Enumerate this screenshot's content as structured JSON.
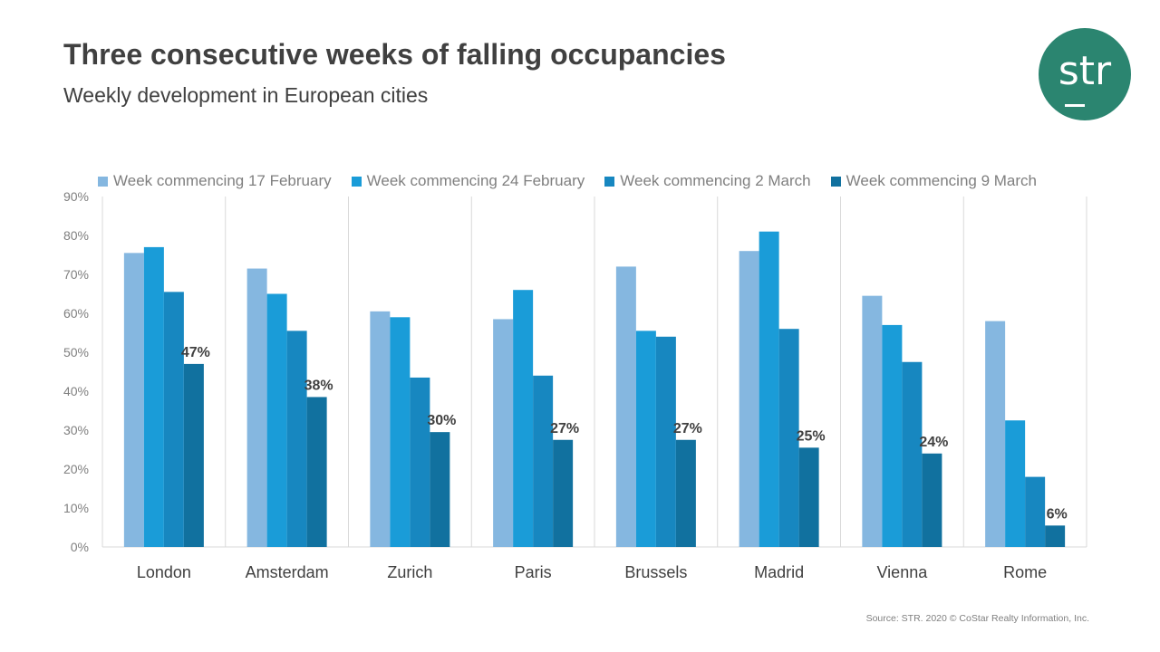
{
  "title": "Three consecutive weeks of falling occupancies",
  "subtitle": "Weekly development in European cities",
  "logo_text": "str",
  "source": "Source: STR. 2020 © CoStar Realty Information, Inc.",
  "chart_data": {
    "type": "bar",
    "categories": [
      "London",
      "Amsterdam",
      "Zurich",
      "Paris",
      "Brussels",
      "Madrid",
      "Vienna",
      "Rome"
    ],
    "ylim": [
      0,
      90
    ],
    "yticks": [
      "0%",
      "10%",
      "20%",
      "30%",
      "40%",
      "50%",
      "60%",
      "70%",
      "80%",
      "90%"
    ],
    "legend_position": "top",
    "grid": "vertical category separators",
    "series": [
      {
        "name": "Week commencing 17 February",
        "color": "#85b7e0",
        "values": [
          75.5,
          71.5,
          60.5,
          58.5,
          72,
          76,
          64.5,
          58
        ]
      },
      {
        "name": "Week commencing 24 February",
        "color": "#1a9cd8",
        "values": [
          77,
          65,
          59,
          66,
          55.5,
          81,
          57,
          32.5
        ]
      },
      {
        "name": "Week commencing 2 March",
        "color": "#1787c0",
        "values": [
          65.5,
          55.5,
          43.5,
          44,
          54,
          56,
          47.5,
          18
        ]
      },
      {
        "name": "Week commencing 9 March",
        "color": "#11719f",
        "values": [
          47,
          38.5,
          29.5,
          27.5,
          27.5,
          25.5,
          24,
          5.5
        ],
        "labels": [
          "47%",
          "38%",
          "30%",
          "27%",
          "27%",
          "25%",
          "24%",
          "6%"
        ]
      }
    ]
  }
}
